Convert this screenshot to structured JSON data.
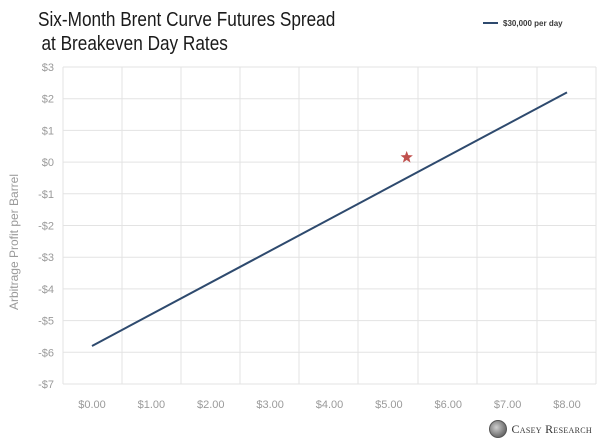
{
  "title_line1": "Six-Month Brent Curve Futures Spread",
  "title_line2": "at Breakeven Day Rates",
  "brand": "Casey Research",
  "colors": {
    "line": "#2e4a6e",
    "star": "#c0504d",
    "grid": "#e3e3e3",
    "tick": "#9a9a9a"
  },
  "chart_data": {
    "type": "line",
    "title": "Six-Month Brent Curve Futures Spread at Breakeven Day Rates",
    "xlabel": "",
    "ylabel": "Arbitrage Profit per Barrel",
    "xlim": [
      0,
      8
    ],
    "ylim": [
      -7,
      3
    ],
    "x_ticks": [
      0,
      1,
      2,
      3,
      4,
      5,
      6,
      7,
      8
    ],
    "x_tick_labels": [
      "$0.00",
      "$1.00",
      "$2.00",
      "$3.00",
      "$4.00",
      "$5.00",
      "$6.00",
      "$7.00",
      "$8.00"
    ],
    "y_ticks": [
      3,
      2,
      1,
      0,
      -1,
      -2,
      -3,
      -4,
      -5,
      -6,
      -7
    ],
    "y_tick_labels": [
      "$3",
      "$2",
      "$1",
      "$0",
      "-$1",
      "-$2",
      "-$3",
      "-$4",
      "-$5",
      "-$6",
      "-$7"
    ],
    "grid": true,
    "legend_position": "top-right",
    "series": [
      {
        "name": "$30,000 per day",
        "x": [
          0,
          8
        ],
        "y": [
          -5.8,
          2.2
        ]
      }
    ],
    "annotations": [
      {
        "type": "star-marker",
        "x": 5.3,
        "y": 0.15
      }
    ]
  }
}
